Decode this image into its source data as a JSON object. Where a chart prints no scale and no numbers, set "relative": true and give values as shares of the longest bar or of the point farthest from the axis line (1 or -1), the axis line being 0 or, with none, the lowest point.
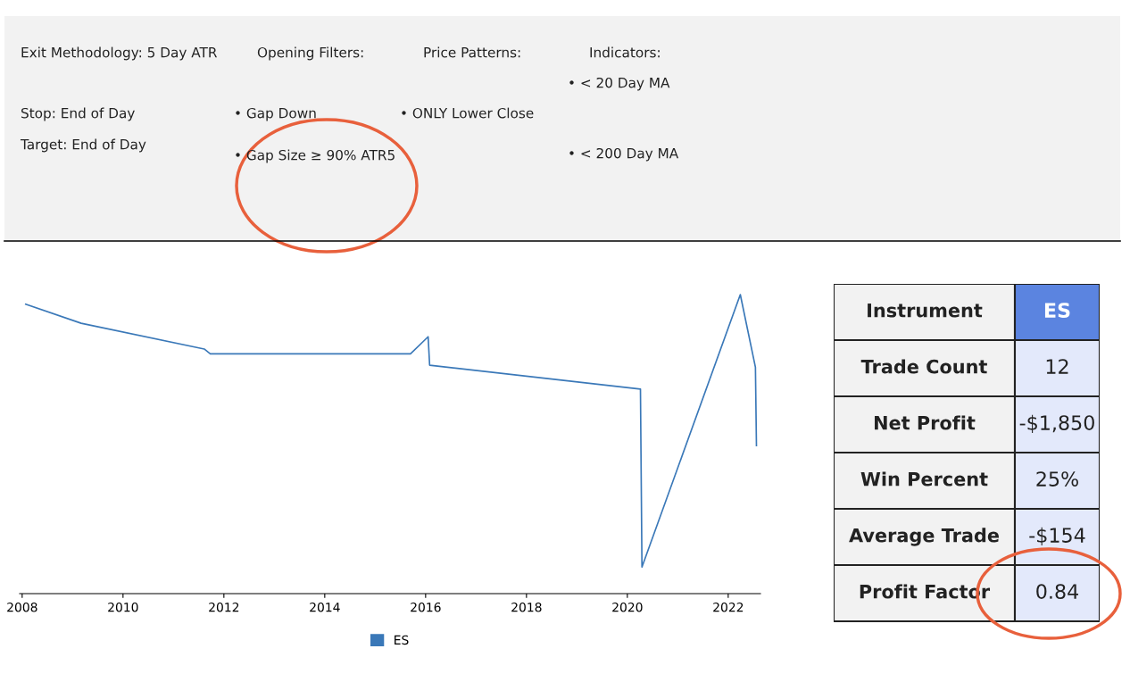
{
  "chart_data": [
    {
      "type": "other",
      "annotations": [
        "Exit Methodology: 5 Day ATR",
        "Stop: End of Day",
        "Target: End of Day",
        "Opening Filters:",
        "• Gap Down",
        "• Gap Size ≥ 90% ATR5",
        "Price Patterns:",
        "• ONLY Lower Close",
        "Indicators:",
        "• < 20 Day MA",
        "• < 200 Day MA"
      ]
    },
    {
      "type": "line",
      "relative": true,
      "xlim": [
        2007.95,
        2022.64
      ],
      "xticks": [
        2008,
        2010,
        2012,
        2014,
        2016,
        2018,
        2020,
        2022
      ],
      "grid": false,
      "legend": "bottom",
      "marker": "none",
      "line_style": "solid",
      "series": [
        {
          "name": "ES",
          "color": "#3a78b8",
          "x": [
            2008.07,
            2009.17,
            2011.61,
            2011.73,
            2015.7,
            2016.05,
            2016.08,
            2020.26,
            2020.29,
            2022.24,
            2022.54,
            2022.56
          ],
          "values": [
            0.968,
            0.904,
            0.818,
            0.802,
            0.802,
            0.859,
            0.764,
            0.684,
            0.089,
            1.0,
            0.757,
            0.495
          ]
        }
      ]
    },
    {
      "type": "other",
      "annotations": [
        "Instrument",
        "ES",
        "Trade Count",
        "12",
        "Net Profit",
        "-$1,850",
        "Win Percent",
        "25%",
        "Average Trade",
        "-$154",
        "Profit Factor",
        "0.84"
      ]
    }
  ]
}
